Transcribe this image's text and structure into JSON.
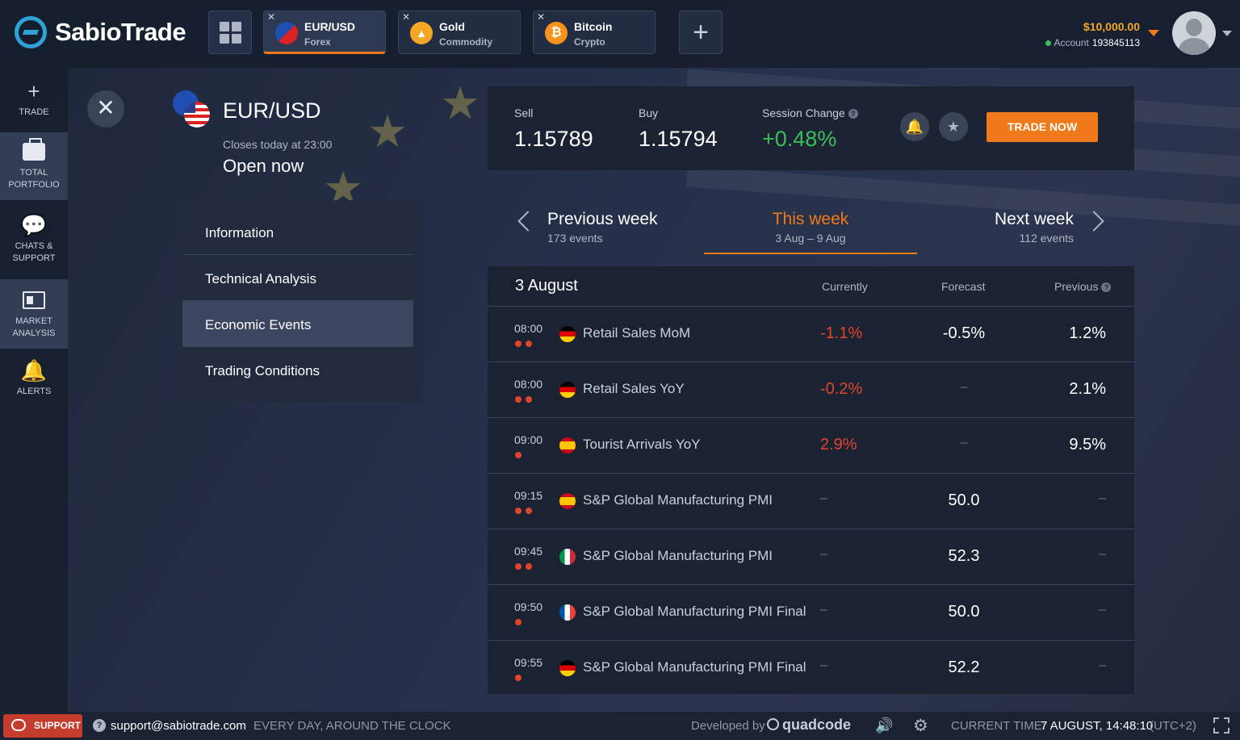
{
  "app": {
    "brand": "SabioTrade"
  },
  "tabs": [
    {
      "name": "EUR/USD",
      "type": "Forex",
      "icon": "eur-usd-flag-icon",
      "active": true,
      "color": "#1f4fb3"
    },
    {
      "name": "Gold",
      "type": "Commodity",
      "icon": "gold-icon",
      "active": false,
      "color": "#f5a623"
    },
    {
      "name": "Bitcoin",
      "type": "Crypto",
      "icon": "bitcoin-icon",
      "active": false,
      "color": "#f7931a"
    }
  ],
  "account": {
    "balance": "$10,000.00",
    "label": "Account",
    "number": "193845113"
  },
  "sidebar": {
    "items": [
      {
        "label": "TRADE",
        "icon": "plus-icon"
      },
      {
        "label": "TOTAL PORTFOLIO",
        "icon": "briefcase-icon"
      },
      {
        "label": "CHATS & SUPPORT",
        "icon": "chat-icon"
      },
      {
        "label": "MARKET ANALYSIS",
        "icon": "newspaper-icon"
      },
      {
        "label": "ALERTS",
        "icon": "bell-icon"
      }
    ]
  },
  "instrument": {
    "title": "EUR/USD",
    "closes": "Closes today at 23:00",
    "status": "Open now"
  },
  "menu": {
    "items": [
      "Information",
      "Technical Analysis",
      "Economic Events",
      "Trading Conditions"
    ],
    "selected": "Economic Events"
  },
  "prices": {
    "sell_label": "Sell",
    "sell": "1.15789",
    "buy_label": "Buy",
    "buy": "1.15794",
    "change_label": "Session Change",
    "change": "+0.48%",
    "trade_now": "TRADE NOW"
  },
  "weeks": {
    "prev": {
      "title": "Previous week",
      "sub": "173 events"
    },
    "current": {
      "title": "This week",
      "sub": "3 Aug – 9 Aug"
    },
    "next": {
      "title": "Next week",
      "sub": "112 events"
    }
  },
  "events": {
    "date": "3 August",
    "headers": {
      "currently": "Currently",
      "forecast": "Forecast",
      "previous": "Previous"
    },
    "rows": [
      {
        "time": "08:00",
        "importance": 2,
        "country": "Germany",
        "name": "Retail Sales MoM",
        "currently": "-1.1%",
        "forecast": "-0.5%",
        "previous": "1.2%"
      },
      {
        "time": "08:00",
        "importance": 2,
        "country": "Germany",
        "name": "Retail Sales YoY",
        "currently": "-0.2%",
        "forecast": "–",
        "previous": "2.1%"
      },
      {
        "time": "09:00",
        "importance": 1,
        "country": "Spain",
        "name": "Tourist Arrivals YoY",
        "currently": "2.9%",
        "forecast": "–",
        "previous": "9.5%"
      },
      {
        "time": "09:15",
        "importance": 2,
        "country": "Spain",
        "name": "S&P Global Manufacturing PMI",
        "currently": "–",
        "forecast": "50.0",
        "previous": "–"
      },
      {
        "time": "09:45",
        "importance": 2,
        "country": "Italy",
        "name": "S&P Global Manufacturing PMI",
        "currently": "–",
        "forecast": "52.3",
        "previous": "–"
      },
      {
        "time": "09:50",
        "importance": 1,
        "country": "France",
        "name": "S&P Global Manufacturing PMI Final",
        "currently": "–",
        "forecast": "50.0",
        "previous": "–"
      },
      {
        "time": "09:55",
        "importance": 1,
        "country": "Germany",
        "name": "S&P Global Manufacturing PMI Final",
        "currently": "–",
        "forecast": "52.2",
        "previous": "–"
      }
    ]
  },
  "statusbar": {
    "support": "SUPPORT",
    "email": "support@sabiotrade.com",
    "hours": "EVERY DAY, AROUND THE CLOCK",
    "developed_by": "Developed by",
    "developer": "quadcode",
    "time_label": "CURRENT TIME:",
    "time": "7 AUGUST, 14:48:10",
    "tz": "(UTC+2)"
  },
  "colors": {
    "accent": "#f07a19",
    "positive": "#3cbf5a",
    "negative": "#e0452b",
    "brand": "#2fa3d8"
  }
}
